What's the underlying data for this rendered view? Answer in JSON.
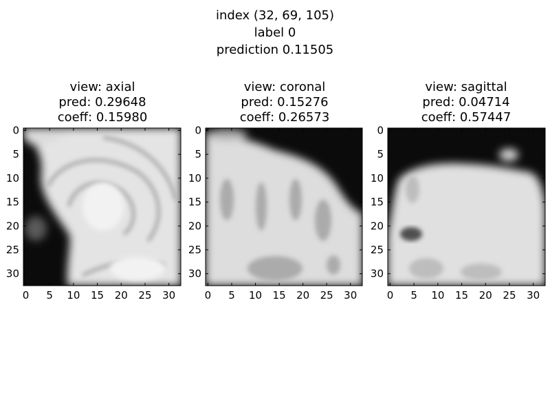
{
  "figure": {
    "title_lines": [
      "index (32, 69, 105)",
      "label 0",
      "prediction 0.11505"
    ],
    "colormap": "gray"
  },
  "chart_data": [
    {
      "type": "heatmap",
      "title_lines": [
        "view: axial",
        "pred: 0.29648",
        "coeff: 0.15980"
      ],
      "x_ticks": [
        "0",
        "5",
        "10",
        "15",
        "20",
        "25",
        "30"
      ],
      "y_ticks": [
        "0",
        "5",
        "10",
        "15",
        "20",
        "25",
        "30"
      ],
      "xlim": [
        0,
        33
      ],
      "ylim": [
        0,
        33
      ],
      "grid": false
    },
    {
      "type": "heatmap",
      "title_lines": [
        "view: coronal",
        "pred: 0.15276",
        "coeff: 0.26573"
      ],
      "x_ticks": [
        "0",
        "5",
        "10",
        "15",
        "20",
        "25",
        "30"
      ],
      "y_ticks": [
        "0",
        "5",
        "10",
        "15",
        "20",
        "25",
        "30"
      ],
      "xlim": [
        0,
        33
      ],
      "ylim": [
        0,
        33
      ],
      "grid": false
    },
    {
      "type": "heatmap",
      "title_lines": [
        "view: sagittal",
        "pred: 0.04714",
        "coeff: 0.57447"
      ],
      "x_ticks": [
        "0",
        "5",
        "10",
        "15",
        "20",
        "25",
        "30"
      ],
      "y_ticks": [
        "0",
        "5",
        "10",
        "15",
        "20",
        "25",
        "30"
      ],
      "xlim": [
        0,
        33
      ],
      "ylim": [
        0,
        33
      ],
      "grid": false
    }
  ]
}
